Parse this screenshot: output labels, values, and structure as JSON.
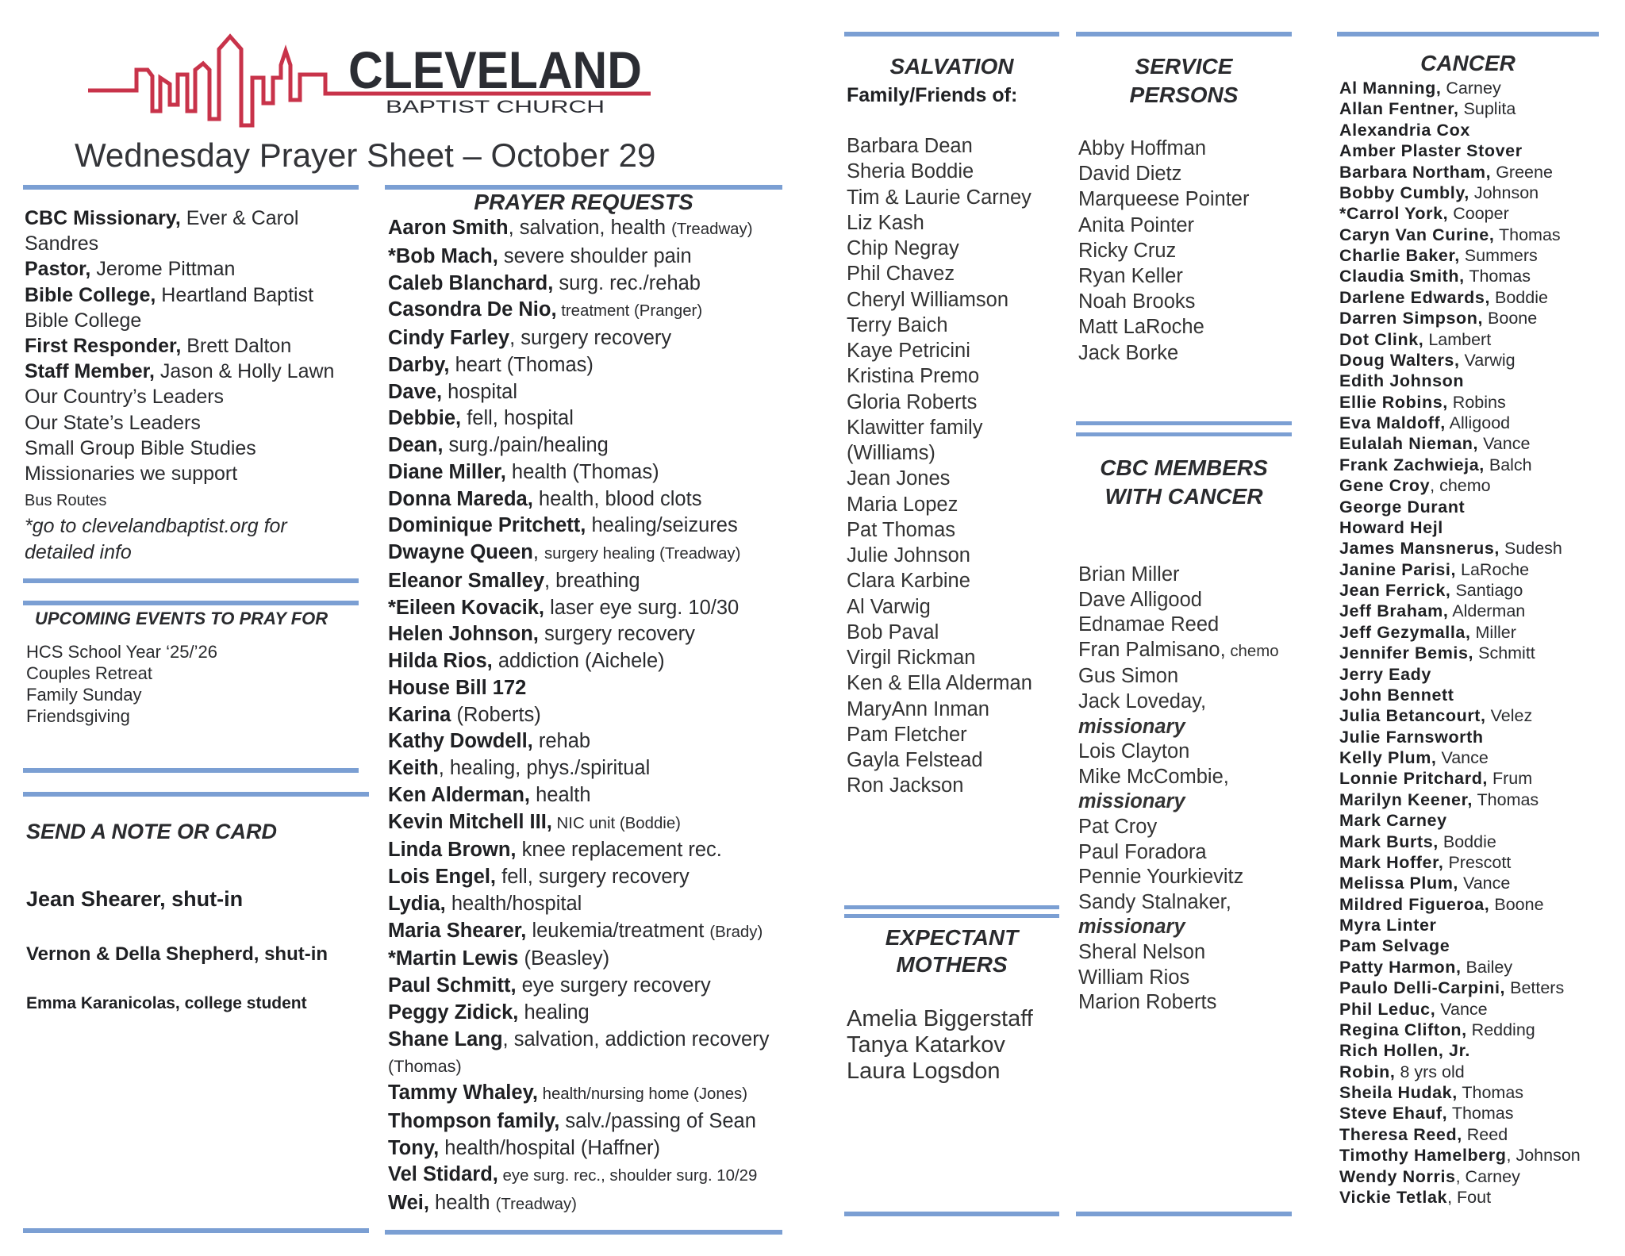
{
  "logo": {
    "name": "CLEVELAND",
    "sub": "BAPTIST CHURCH"
  },
  "colors": {
    "rule": "#7b9fd3",
    "logo_red": "#c8334a",
    "logo_dark": "#2b2d33"
  },
  "title": "Wednesday Prayer Sheet – October 29",
  "left_col": {
    "items": [
      {
        "b": "CBC Missionary,",
        "t": " Ever & Carol"
      },
      {
        "t": "Sandres"
      },
      {
        "b": "Pastor,",
        "t": " Jerome Pittman"
      },
      {
        "b": "Bible College,",
        "t": " Heartland Baptist"
      },
      {
        "t": "Bible College"
      },
      {
        "b": "First Responder,",
        "t": " Brett Dalton"
      },
      {
        "b": "Staff Member,",
        "t": " Jason & Holly Lawn"
      },
      {
        "t": "Our Country’s Leaders"
      },
      {
        "t": "Our State’s Leaders"
      },
      {
        "t": "Small Group Bible Studies"
      },
      {
        "t": "Missionaries we support"
      },
      {
        "s": "Bus Routes"
      },
      {
        "i": "*go to clevelandbaptist.org for"
      },
      {
        "i": "detailed info"
      }
    ]
  },
  "events": {
    "heading": "UPCOMING EVENTS TO PRAY FOR",
    "items": [
      {
        "t": "HCS School Year ‘25/’26"
      },
      {
        "t": "Couples Retreat"
      },
      {
        "t": "Family Sunday"
      },
      {
        "t": "Friendsgiving"
      }
    ]
  },
  "notes": {
    "heading": "SEND A NOTE OR CARD",
    "items": [
      "Jean Shearer, shut-in",
      "Vernon & Della Shepherd, shut-in",
      "Emma Karanicolas, college student"
    ]
  },
  "prayer": {
    "heading": "PRAYER REQUESTS",
    "items": [
      {
        "b": "Aaron Smith",
        "t": ", salvation, health ",
        "s": "(Treadway)"
      },
      {
        "b": "*Bob Mach,",
        "t": " severe shoulder pain"
      },
      {
        "b": "Caleb Blanchard,",
        "t": " surg. rec./rehab"
      },
      {
        "b": "Casondra De Nio,",
        "s": " treatment (Pranger)"
      },
      {
        "b": "Cindy Farley",
        "t": ", surgery recovery"
      },
      {
        "b": "Darby,",
        "t": " heart (Thomas)"
      },
      {
        "b": "Dave,",
        "t": " hospital"
      },
      {
        "b": "Debbie,",
        "t": " fell, hospital"
      },
      {
        "b": "Dean,",
        "t": " surg./pain/healing"
      },
      {
        "b": "Diane Miller,",
        "t": " health (Thomas)"
      },
      {
        "b": "Donna Mareda,",
        "t": " health, blood clots"
      },
      {
        "b": "Dominique Pritchett,",
        "t": " healing/seizures"
      },
      {
        "b": "Dwayne Queen",
        "t": ", ",
        "s": "surgery healing (Treadway)"
      },
      {
        "b": "Eleanor Smalley",
        "t": ", breathing"
      },
      {
        "b": "*Eileen Kovacik,",
        "t": " laser eye surg. 10/30"
      },
      {
        "b": "Helen Johnson,",
        "t": " surgery recovery"
      },
      {
        "b": "Hilda Rios,",
        "t": " addiction (Aichele)"
      },
      {
        "b": "House Bill 172"
      },
      {
        "b": "Karina",
        "t": " (Roberts)"
      },
      {
        "b": "Kathy Dowdell,",
        "t": " rehab"
      },
      {
        "b": "Keith",
        "t": ", healing, phys./spiritual"
      },
      {
        "b": "Ken Alderman,",
        "t": " health"
      },
      {
        "b": "Kevin Mitchell III,",
        "s": " NIC unit (Boddie)"
      },
      {
        "b": "Linda Brown,",
        "t": " knee replacement rec."
      },
      {
        "b": "Lois Engel,",
        "t": " fell, surgery recovery"
      },
      {
        "b": "Lydia,",
        "t": " health/hospital"
      },
      {
        "b": "Maria Shearer,",
        "t": " leukemia/treatment ",
        "s": "(Brady)"
      },
      {
        "b": "*Martin Lewis",
        "t": " (Beasley)"
      },
      {
        "b": "Paul Schmitt,",
        "t": " eye surgery recovery"
      },
      {
        "b": "Peggy Zidick,",
        "t": " healing"
      },
      {
        "b": "Shane Lang",
        "t": ", salvation, addiction recovery",
        "c": "(Thomas)"
      },
      {
        "b": "Tammy Whaley,",
        "s": " health/nursing home (Jones)"
      },
      {
        "b": "Thompson family,",
        "t": " salv./passing of Sean"
      },
      {
        "b": "Tony,",
        "t": " health/hospital (Haffner)"
      },
      {
        "b": "Vel Stidard,",
        "s": " eye surg. rec., shoulder surg. 10/29"
      },
      {
        "b": "Wei,",
        "t": " health ",
        "s": "(Treadway)"
      }
    ]
  },
  "salvation": {
    "heading": "SALVATION",
    "subheading": "Family/Friends of:",
    "items": [
      {
        "t": "Barbara Dean"
      },
      {
        "t": "Sheria Boddie"
      },
      {
        "t": "Tim & Laurie Carney"
      },
      {
        "t": "Liz Kash"
      },
      {
        "t": "Chip Negray"
      },
      {
        "t": "Phil Chavez"
      },
      {
        "t": "Cheryl Williamson"
      },
      {
        "t": "Terry Baich"
      },
      {
        "t": "Kaye Petricini"
      },
      {
        "t": "Kristina Premo"
      },
      {
        "t": "Gloria Roberts"
      },
      {
        "t": "Klawitter family"
      },
      {
        "t": "(Williams)"
      },
      {
        "t": "Jean Jones"
      },
      {
        "t": "Maria Lopez"
      },
      {
        "t": "Pat Thomas"
      },
      {
        "t": "Julie Johnson"
      },
      {
        "t": "Clara Karbine"
      },
      {
        "t": "Al Varwig"
      },
      {
        "t": "Bob Paval"
      },
      {
        "t": "Virgil Rickman"
      },
      {
        "t": "Ken & Ella Alderman"
      },
      {
        "t": "MaryAnn Inman"
      },
      {
        "t": "Pam Fletcher"
      },
      {
        "t": "Gayla Felstead"
      },
      {
        "t": "Ron Jackson"
      }
    ]
  },
  "expectant": {
    "heading1": "EXPECTANT",
    "heading2": "MOTHERS",
    "items": [
      {
        "t": "Amelia Biggerstaff"
      },
      {
        "t": "Tanya Katarkov"
      },
      {
        "t": "Laura Logsdon"
      }
    ]
  },
  "service": {
    "heading1": "SERVICE",
    "heading2": "PERSONS",
    "items": [
      {
        "t": "Abby Hoffman"
      },
      {
        "t": "David Dietz"
      },
      {
        "t": "Marqueese Pointer"
      },
      {
        "t": "Anita Pointer"
      },
      {
        "t": "Ricky Cruz"
      },
      {
        "t": "Ryan Keller"
      },
      {
        "t": "Noah Brooks"
      },
      {
        "t": "Matt LaRoche"
      },
      {
        "t": "Jack Borke"
      }
    ]
  },
  "members_cancer": {
    "heading1": "CBC MEMBERS",
    "heading2": "WITH CANCER",
    "items": [
      {
        "t": "Brian Miller"
      },
      {
        "t": "Dave Alligood"
      },
      {
        "t": "Ednamae Reed"
      },
      {
        "t": "Fran Palmisano,",
        "s": " chemo"
      },
      {
        "t": "Gus Simon"
      },
      {
        "t": "Jack Loveday,"
      },
      {
        "bi": "missionary"
      },
      {
        "t": "Lois Clayton"
      },
      {
        "t": "Mike McCombie,"
      },
      {
        "bi": "missionary"
      },
      {
        "t": "Pat Croy"
      },
      {
        "t": "Paul Foradora"
      },
      {
        "t": "Pennie Yourkievitz"
      },
      {
        "t": "Sandy Stalnaker,"
      },
      {
        "bi": "missionary"
      },
      {
        "t": "Sheral Nelson"
      },
      {
        "t": "William Rios"
      },
      {
        "t": "Marion Roberts"
      }
    ]
  },
  "cancer": {
    "heading": "CANCER",
    "items": [
      {
        "b": "Al Manning,",
        "t": " Carney"
      },
      {
        "b": "Allan Fentner,",
        "t": " Suplita"
      },
      {
        "b": "Alexandria Cox"
      },
      {
        "b": "Amber Plaster Stover"
      },
      {
        "b": "Barbara Northam,",
        "t": " Greene"
      },
      {
        "b": "Bobby Cumbly,",
        "t": " Johnson"
      },
      {
        "b": "*Carrol York,",
        "t": " Cooper"
      },
      {
        "b": "Caryn Van Curine,",
        "t": " Thomas"
      },
      {
        "b": "Charlie Baker,",
        "t": " Summers"
      },
      {
        "b": "Claudia Smith,",
        "t": " Thomas"
      },
      {
        "b": "Darlene Edwards,",
        "t": " Boddie"
      },
      {
        "b": "Darren Simpson,",
        "t": " Boone"
      },
      {
        "b": "Dot Clink,",
        "t": " Lambert"
      },
      {
        "b": "Doug Walters,",
        "t": " Varwig"
      },
      {
        "b": "Edith Johnson"
      },
      {
        "b": "Ellie Robins,",
        "t": " Robins"
      },
      {
        "b": "Eva Maldoff,",
        "t": " Alligood"
      },
      {
        "b": "Eulalah Nieman,",
        "t": " Vance"
      },
      {
        "b": "Frank Zachwieja,",
        "t": " Balch"
      },
      {
        "b": "Gene Croy",
        "t": ", chemo"
      },
      {
        "b": "George Durant"
      },
      {
        "b": "Howard Hejl"
      },
      {
        "b": "James Mansnerus,",
        "t": " Sudesh"
      },
      {
        "b": "Janine Parisi,",
        "t": " LaRoche"
      },
      {
        "b": "Jean Ferrick,",
        "t": " Santiago"
      },
      {
        "b": "Jeff Braham,",
        "t": " Alderman"
      },
      {
        "b": "Jeff Gezymalla,",
        "t": " Miller"
      },
      {
        "b": "Jennifer Bemis,",
        "t": " Schmitt"
      },
      {
        "b": "Jerry Eady"
      },
      {
        "b": "John Bennett"
      },
      {
        "b": "Julia Betancourt,",
        "t": " Velez"
      },
      {
        "b": "Julie Farnsworth"
      },
      {
        "b": "Kelly Plum,",
        "t": " Vance"
      },
      {
        "b": "Lonnie Pritchard,",
        "t": " Frum"
      },
      {
        "b": "Marilyn Keener,",
        "t": " Thomas"
      },
      {
        "b": "Mark Carney"
      },
      {
        "b": "Mark Burts,",
        "t": " Boddie"
      },
      {
        "b": "Mark Hoffer,",
        "t": " Prescott"
      },
      {
        "b": "Melissa Plum,",
        "t": " Vance"
      },
      {
        "b": "Mildred Figueroa,",
        "t": " Boone"
      },
      {
        "b": "Myra Linter"
      },
      {
        "b": "Pam Selvage"
      },
      {
        "b": "Patty Harmon,",
        "t": " Bailey"
      },
      {
        "b": "Paulo Delli-Carpini,",
        "t": " Betters"
      },
      {
        "b": "Phil Leduc,",
        "t": " Vance"
      },
      {
        "b": "Regina Clifton,",
        "t": " Redding"
      },
      {
        "b": "Rich Hollen, Jr."
      },
      {
        "b": "Robin,",
        "t": " 8 yrs old"
      },
      {
        "b": "Sheila Hudak,",
        "t": " Thomas"
      },
      {
        "b": "Steve Ehauf,",
        "t": " Thomas"
      },
      {
        "b": "Theresa Reed,",
        "t": " Reed"
      },
      {
        "b": "Timothy Hamelberg",
        "t": ", Johnson"
      },
      {
        "b": "Wendy Norris",
        "t": ", Carney"
      },
      {
        "b": "Vickie Tetlak",
        "t": ", Fout"
      }
    ]
  }
}
